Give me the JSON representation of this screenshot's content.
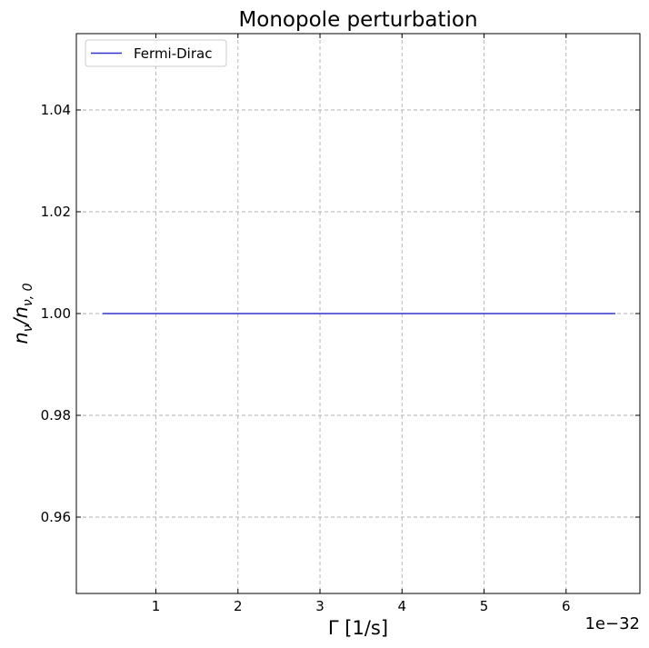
{
  "chart_data": {
    "type": "line",
    "title": "Monopole perturbation",
    "xlabel": "Γ [1/s]",
    "ylabel": "n_ν/n_ν,0",
    "ylabel_parts": {
      "base1": "n",
      "sub1": "ν",
      "slash": "/",
      "base2": "n",
      "sub2": "ν, 0"
    },
    "x_offset_label": "1e−32",
    "xlim": [
      0.03,
      6.9
    ],
    "ylim": [
      0.945,
      1.055
    ],
    "x_ticks": [
      1,
      2,
      3,
      4,
      5,
      6
    ],
    "x_tick_labels": [
      "1",
      "2",
      "3",
      "4",
      "5",
      "6"
    ],
    "y_ticks": [
      0.96,
      0.98,
      1.0,
      1.02,
      1.04
    ],
    "y_tick_labels": [
      "0.96",
      "0.98",
      "1.00",
      "1.02",
      "1.04"
    ],
    "grid": true,
    "legend_position": "upper-left",
    "series": [
      {
        "name": "Fermi-Dirac",
        "color": "#3333cc",
        "x": [
          0.35,
          1.0,
          2.0,
          3.0,
          4.0,
          5.0,
          6.0,
          6.6
        ],
        "y": [
          1.0,
          1.0,
          1.0,
          1.0,
          1.0,
          1.0,
          1.0,
          1.0
        ]
      }
    ]
  }
}
